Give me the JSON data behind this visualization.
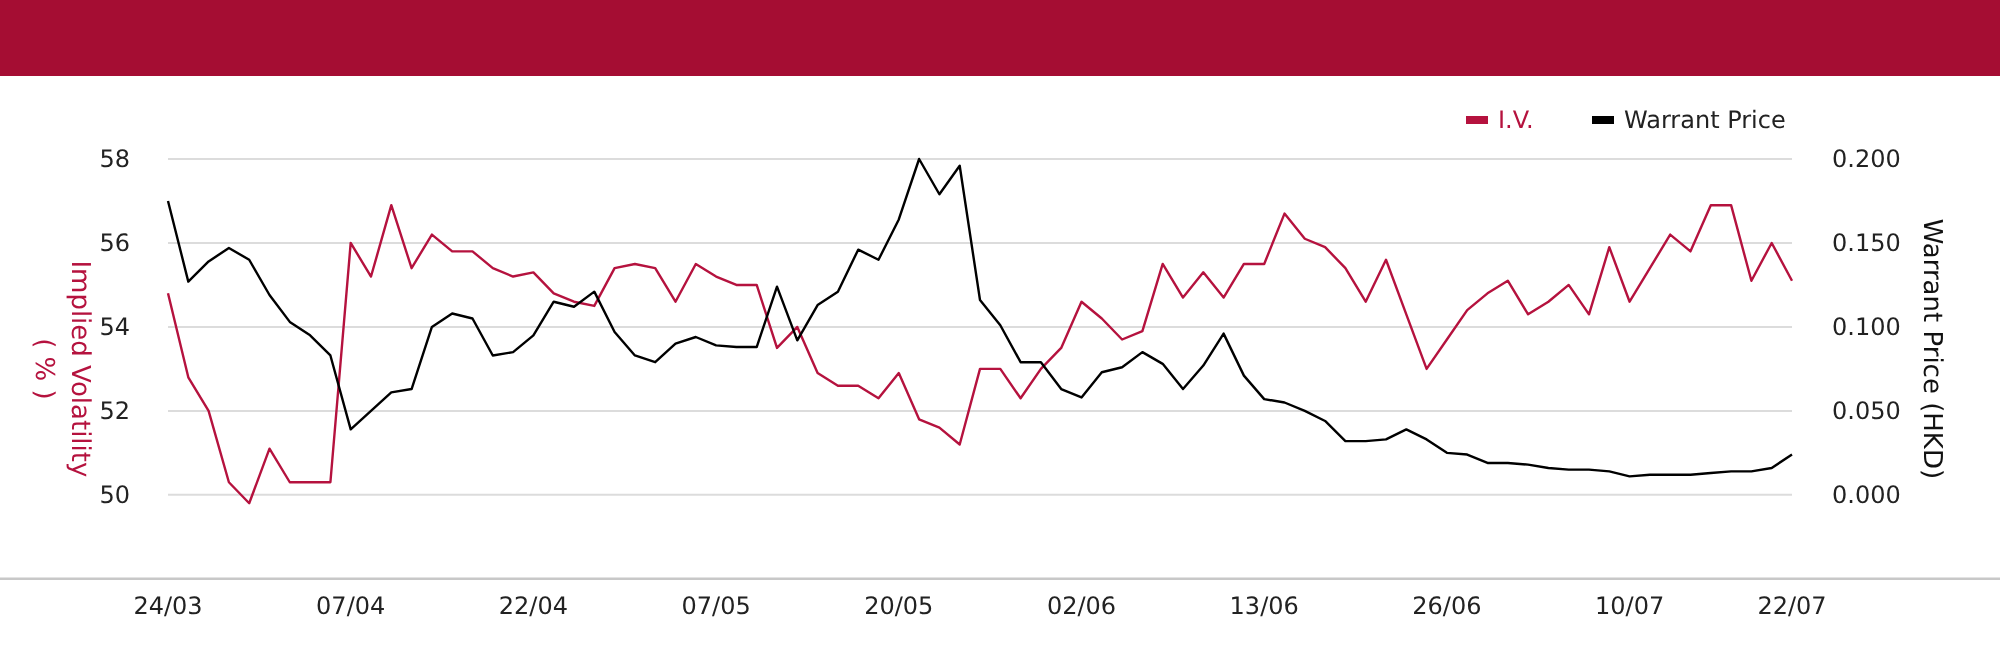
{
  "chart_data": {
    "type": "line",
    "ylabel": "Implied Volatility\n( % )",
    "y2label": "Warrant Price (HKD)",
    "categories": [
      "24/03",
      null,
      null,
      null,
      null,
      null,
      null,
      null,
      null,
      "07/04",
      null,
      null,
      null,
      null,
      null,
      null,
      null,
      null,
      "22/04",
      null,
      null,
      null,
      null,
      null,
      null,
      null,
      null,
      "07/05",
      null,
      null,
      null,
      null,
      null,
      null,
      null,
      null,
      "20/05",
      null,
      null,
      null,
      null,
      null,
      null,
      null,
      null,
      "02/06",
      null,
      null,
      null,
      null,
      null,
      null,
      null,
      null,
      "13/06",
      null,
      null,
      null,
      null,
      null,
      null,
      null,
      null,
      "26/06",
      null,
      null,
      null,
      null,
      null,
      null,
      null,
      null,
      "10/07",
      null,
      null,
      null,
      null,
      null,
      null,
      null,
      "22/07"
    ],
    "series": [
      {
        "name": "I.V.",
        "color": "#b5123e",
        "values": [
          54.8,
          52.8,
          52.0,
          50.3,
          49.8,
          51.1,
          50.3,
          50.3,
          50.3,
          56.0,
          55.2,
          56.9,
          55.4,
          56.2,
          55.8,
          55.8,
          55.4,
          55.2,
          55.3,
          54.8,
          54.6,
          54.5,
          55.4,
          55.5,
          55.4,
          54.6,
          55.5,
          55.2,
          55.0,
          55.0,
          53.5,
          54.0,
          52.9,
          52.6,
          52.6,
          52.3,
          52.9,
          51.8,
          51.6,
          51.2,
          53.0,
          53.0,
          52.3,
          53.0,
          53.5,
          54.6,
          54.2,
          53.7,
          53.9,
          55.5,
          54.7,
          55.3,
          54.7,
          55.5,
          55.5,
          56.7,
          56.1,
          55.9,
          55.4,
          54.6,
          55.6,
          54.3,
          53.0,
          53.7,
          54.4,
          54.8,
          55.1,
          54.3,
          54.6,
          55.0,
          54.3,
          55.9,
          54.6,
          55.4,
          56.2,
          55.8,
          56.9,
          56.9,
          55.1,
          56.0,
          55.1
        ]
      },
      {
        "name": "Warrant Price",
        "color": "#000000",
        "axis": "y2",
        "values": [
          0.175,
          0.127,
          0.139,
          0.147,
          0.14,
          0.119,
          0.103,
          0.095,
          0.083,
          0.039,
          0.05,
          0.061,
          0.063,
          0.1,
          0.108,
          0.105,
          0.083,
          0.085,
          0.095,
          0.115,
          0.112,
          0.121,
          0.097,
          0.083,
          0.079,
          0.09,
          0.094,
          0.089,
          0.088,
          0.088,
          0.124,
          0.092,
          0.113,
          0.121,
          0.146,
          0.14,
          0.164,
          0.2,
          0.179,
          0.196,
          0.116,
          0.101,
          0.079,
          0.079,
          0.063,
          0.058,
          0.073,
          0.076,
          0.085,
          0.078,
          0.063,
          0.077,
          0.096,
          0.071,
          0.057,
          0.055,
          0.05,
          0.044,
          0.032,
          0.032,
          0.033,
          0.039,
          0.033,
          0.025,
          0.024,
          0.019,
          0.019,
          0.018,
          0.016,
          0.015,
          0.015,
          0.014,
          0.011,
          0.012,
          0.012,
          0.012,
          0.013,
          0.014,
          0.014,
          0.016,
          0.024
        ]
      }
    ],
    "ylim": [
      48,
      58
    ],
    "yticks": [
      50,
      52,
      54,
      56,
      58
    ],
    "y2lim": [
      -0.05,
      0.2
    ],
    "y2ticks": [
      {
        "value": 0,
        "label": "0.000"
      },
      {
        "value": 0.05,
        "label": "0.050"
      },
      {
        "value": 0.1,
        "label": "0.100"
      },
      {
        "value": 0.15,
        "label": "0.150"
      },
      {
        "value": 0.2,
        "label": "0.200"
      }
    ],
    "grid": "y",
    "legend": "top right",
    "marker": "none",
    "line_style": "solid"
  }
}
